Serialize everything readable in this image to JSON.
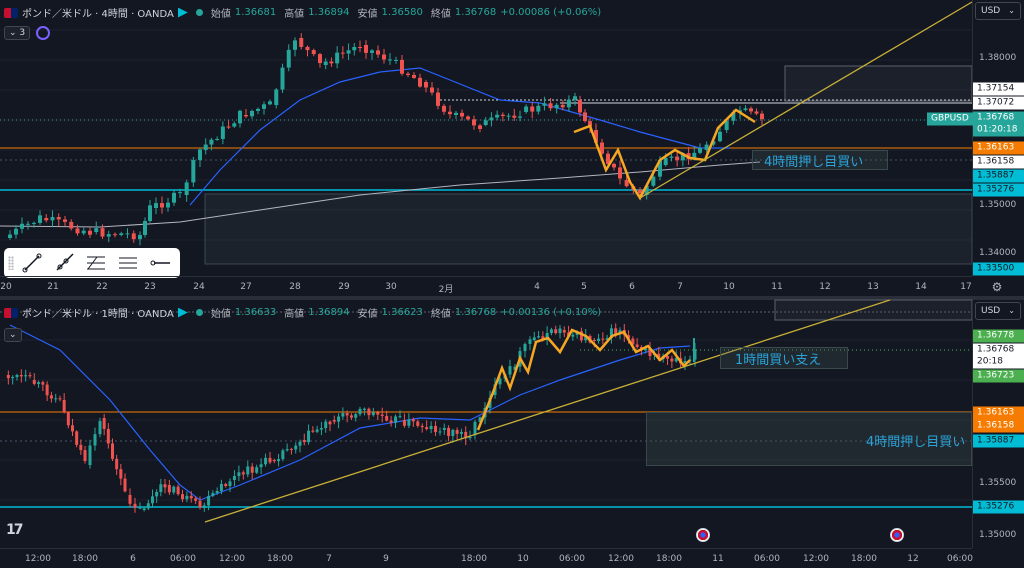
{
  "top": {
    "legend": {
      "symbol": "ポンド／米ドル · 4時間 · OANDA",
      "open_label": "始値",
      "open": "1.36681",
      "high_label": "高値",
      "high": "1.36894",
      "low_label": "安値",
      "low": "1.36580",
      "close_label": "終値",
      "close": "1.36768",
      "change": "+0.00086 (+0.06%)"
    },
    "indicator_count": "3",
    "currency": "USD",
    "price_ticks": [
      "1.38000",
      "1.35000",
      "1.34000"
    ],
    "price_tags": [
      {
        "text": "1.37154",
        "bg": "#ffffff",
        "fg": "#131722"
      },
      {
        "text": "1.37072",
        "bg": "#ffffff",
        "fg": "#131722"
      },
      {
        "text": "1.36768",
        "bg": "#26a69a",
        "fg": "#ffffff"
      },
      {
        "text": "01:20:18",
        "bg": "#26a69a",
        "fg": "#ffffff"
      },
      {
        "text": "1.36163",
        "bg": "#f57c00",
        "fg": "#ffffff"
      },
      {
        "text": "1.36158",
        "bg": "#ffffff",
        "fg": "#131722"
      },
      {
        "text": "1.35887",
        "bg": "#00bcd4",
        "fg": "#131722"
      },
      {
        "text": "1.35276",
        "bg": "#00bcd4",
        "fg": "#131722"
      },
      {
        "text": "1.33500",
        "bg": "#00bcd4",
        "fg": "#131722"
      }
    ],
    "symbol_tag": "GBPUSD",
    "time_ticks": [
      "20",
      "21",
      "22",
      "23",
      "24",
      "27",
      "28",
      "29",
      "30",
      "2月",
      "4",
      "5",
      "6",
      "7",
      "10",
      "11",
      "12",
      "13",
      "14",
      "17"
    ],
    "annotation": "4時間押し目買い"
  },
  "bottom": {
    "legend": {
      "symbol": "ポンド／米ドル · 1時間 · OANDA",
      "open_label": "始値",
      "open": "1.36633",
      "high_label": "高値",
      "high": "1.36894",
      "low_label": "安値",
      "low": "1.36623",
      "close_label": "終値",
      "close": "1.36768",
      "change": "+0.00136 (+0.10%)"
    },
    "currency": "USD",
    "price_ticks": [
      "1.35500",
      "1.35000"
    ],
    "price_tags": [
      {
        "text": "1.36778",
        "bg": "#4caf50",
        "fg": "#ffffff"
      },
      {
        "text": "1.36768",
        "bg": "#ffffff",
        "fg": "#131722"
      },
      {
        "text": "20:18",
        "bg": "#ffffff",
        "fg": "#131722"
      },
      {
        "text": "1.36723",
        "bg": "#4caf50",
        "fg": "#ffffff"
      },
      {
        "text": "1.36163",
        "bg": "#f57c00",
        "fg": "#ffffff"
      },
      {
        "text": "1.36158",
        "bg": "#f57c00",
        "fg": "#ffffff"
      },
      {
        "text": "1.35887",
        "bg": "#00bcd4",
        "fg": "#131722"
      },
      {
        "text": "1.35276",
        "bg": "#00bcd4",
        "fg": "#131722"
      }
    ],
    "time_ticks": [
      "12:00",
      "18:00",
      "6",
      "06:00",
      "12:00",
      "18:00",
      "7",
      "9",
      "18:00",
      "10",
      "06:00",
      "12:00",
      "18:00",
      "11",
      "06:00",
      "12:00",
      "18:00",
      "12",
      "06:00"
    ],
    "annotation_support": "1時間買い支え",
    "annotation_dip": "4時間押し目買い"
  },
  "colors": {
    "bull": "#26a69a",
    "bear": "#ef5350",
    "ma_fast": "#2962ff",
    "ma_slow": "#b2b5be",
    "trend": "#c9b037",
    "zigzag": "#f5a623",
    "level_orange": "#f57c00",
    "level_cyan": "#00bcd4"
  },
  "toolbar_icons": [
    "trend-line-icon",
    "ray-icon",
    "fib-retracement-icon",
    "parallel-channel-icon",
    "horizontal-ray-icon"
  ]
}
